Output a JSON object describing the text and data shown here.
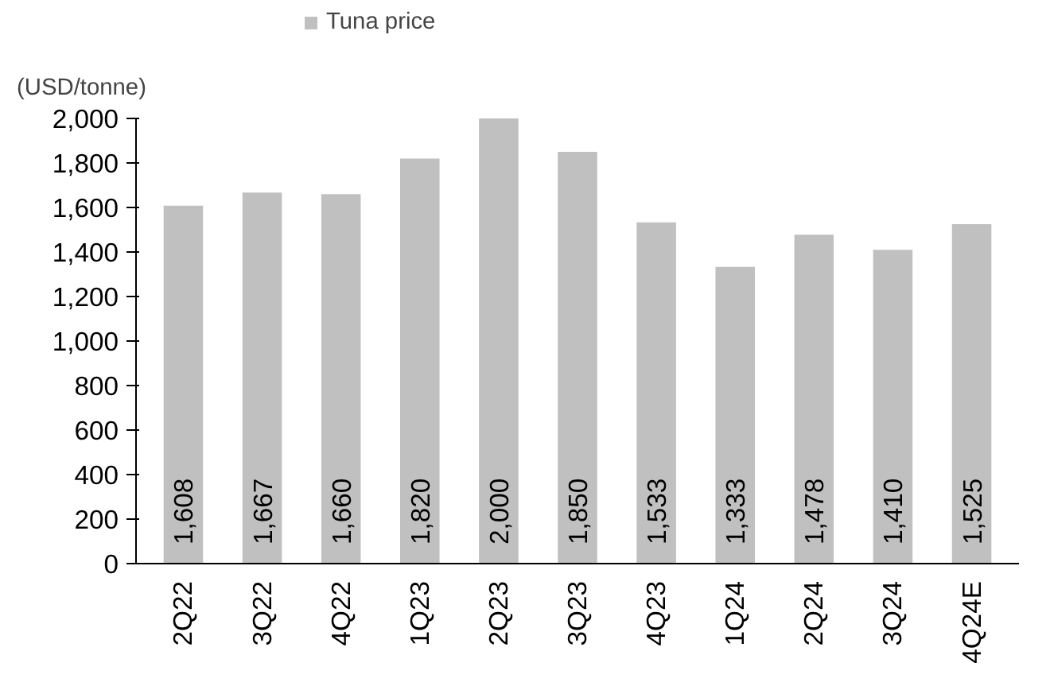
{
  "chart_data": {
    "type": "bar",
    "ylabel": "(USD/tonne)",
    "categories": [
      "2Q22",
      "3Q22",
      "4Q22",
      "1Q23",
      "2Q23",
      "3Q23",
      "4Q23",
      "1Q24",
      "2Q24",
      "3Q24",
      "4Q24E"
    ],
    "series": [
      {
        "name": "Tuna price",
        "color": "#c0c0c0",
        "values": [
          1608,
          1667,
          1660,
          1820,
          2000,
          1850,
          1533,
          1333,
          1478,
          1410,
          1525
        ]
      }
    ],
    "ylim": [
      0,
      2000
    ],
    "yticks": [
      {
        "value": 0,
        "label": "0"
      },
      {
        "value": 200,
        "label": "200"
      },
      {
        "value": 400,
        "label": "400"
      },
      {
        "value": 600,
        "label": "600"
      },
      {
        "value": 800,
        "label": "800"
      },
      {
        "value": 1000,
        "label": "1,000"
      },
      {
        "value": 1200,
        "label": "1,200"
      },
      {
        "value": 1400,
        "label": "1,400"
      },
      {
        "value": 1600,
        "label": "1,600"
      },
      {
        "value": 1800,
        "label": "1,800"
      },
      {
        "value": 2000,
        "label": "2,000"
      }
    ],
    "value_labels": [
      "1,608",
      "1,667",
      "1,660",
      "1,820",
      "2,000",
      "1,850",
      "1,533",
      "1,333",
      "1,478",
      "1,410",
      "1,525"
    ],
    "grid": false,
    "legend": "top"
  }
}
